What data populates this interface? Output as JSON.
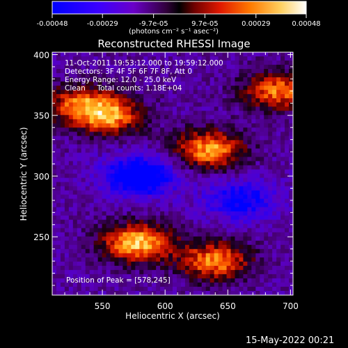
{
  "colorbar": {
    "tick_labels": [
      "-0.00048",
      "-0.00029",
      "-9.7e-05",
      "9.7e-05",
      "0.00029",
      "0.00048"
    ],
    "tick_values": [
      -0.00048,
      -0.00029,
      -9.7e-05,
      9.7e-05,
      0.00029,
      0.00048
    ],
    "units_label": "(photons cm⁻² s⁻¹ asec⁻²)",
    "range": [
      -0.00048,
      0.00048
    ],
    "colors": [
      "#0000ff",
      "#5a00ff",
      "#8a00b0",
      "#000000",
      "#8a0000",
      "#ff3000",
      "#ff9a00",
      "#fff8b0",
      "#ffffff"
    ]
  },
  "chart_data": {
    "type": "heatmap",
    "title": "Reconstructed RHESSI Image",
    "xlabel": "Heliocentric X (arcsec)",
    "ylabel": "Heliocentric Y (arcsec)",
    "xlim": [
      510,
      702
    ],
    "ylim": [
      202,
      402
    ],
    "xticks": [
      550,
      600,
      650,
      700
    ],
    "yticks": [
      250,
      300,
      350,
      400
    ],
    "peak": [
      578,
      245
    ],
    "annotations": {
      "time_range": "11-Oct-2011 19:53:12.000 to 19:59:12.000",
      "detectors": "Detectors: 3F 4F 5F 6F 7F 8F, Att 0",
      "energy_range": "Energy Range: 12.0 - 25.0 keV",
      "clean_counts": "Clean     Total counts: 1.18E+04",
      "peak_label": "Position of Peak = [578,245]"
    },
    "bright_regions": [
      {
        "x": 578,
        "y": 245,
        "level": 1.0
      },
      {
        "x": 640,
        "y": 230,
        "level": 0.85
      },
      {
        "x": 635,
        "y": 322,
        "level": 0.9
      },
      {
        "x": 555,
        "y": 350,
        "level": 0.85
      },
      {
        "x": 690,
        "y": 370,
        "level": 0.8
      },
      {
        "x": 530,
        "y": 360,
        "level": 0.6
      }
    ],
    "dark_regions": [
      {
        "x": 580,
        "y": 300,
        "level": -0.9
      },
      {
        "x": 660,
        "y": 280,
        "level": -0.6
      }
    ]
  },
  "footer": {
    "date": "15-May-2022 00:21"
  }
}
